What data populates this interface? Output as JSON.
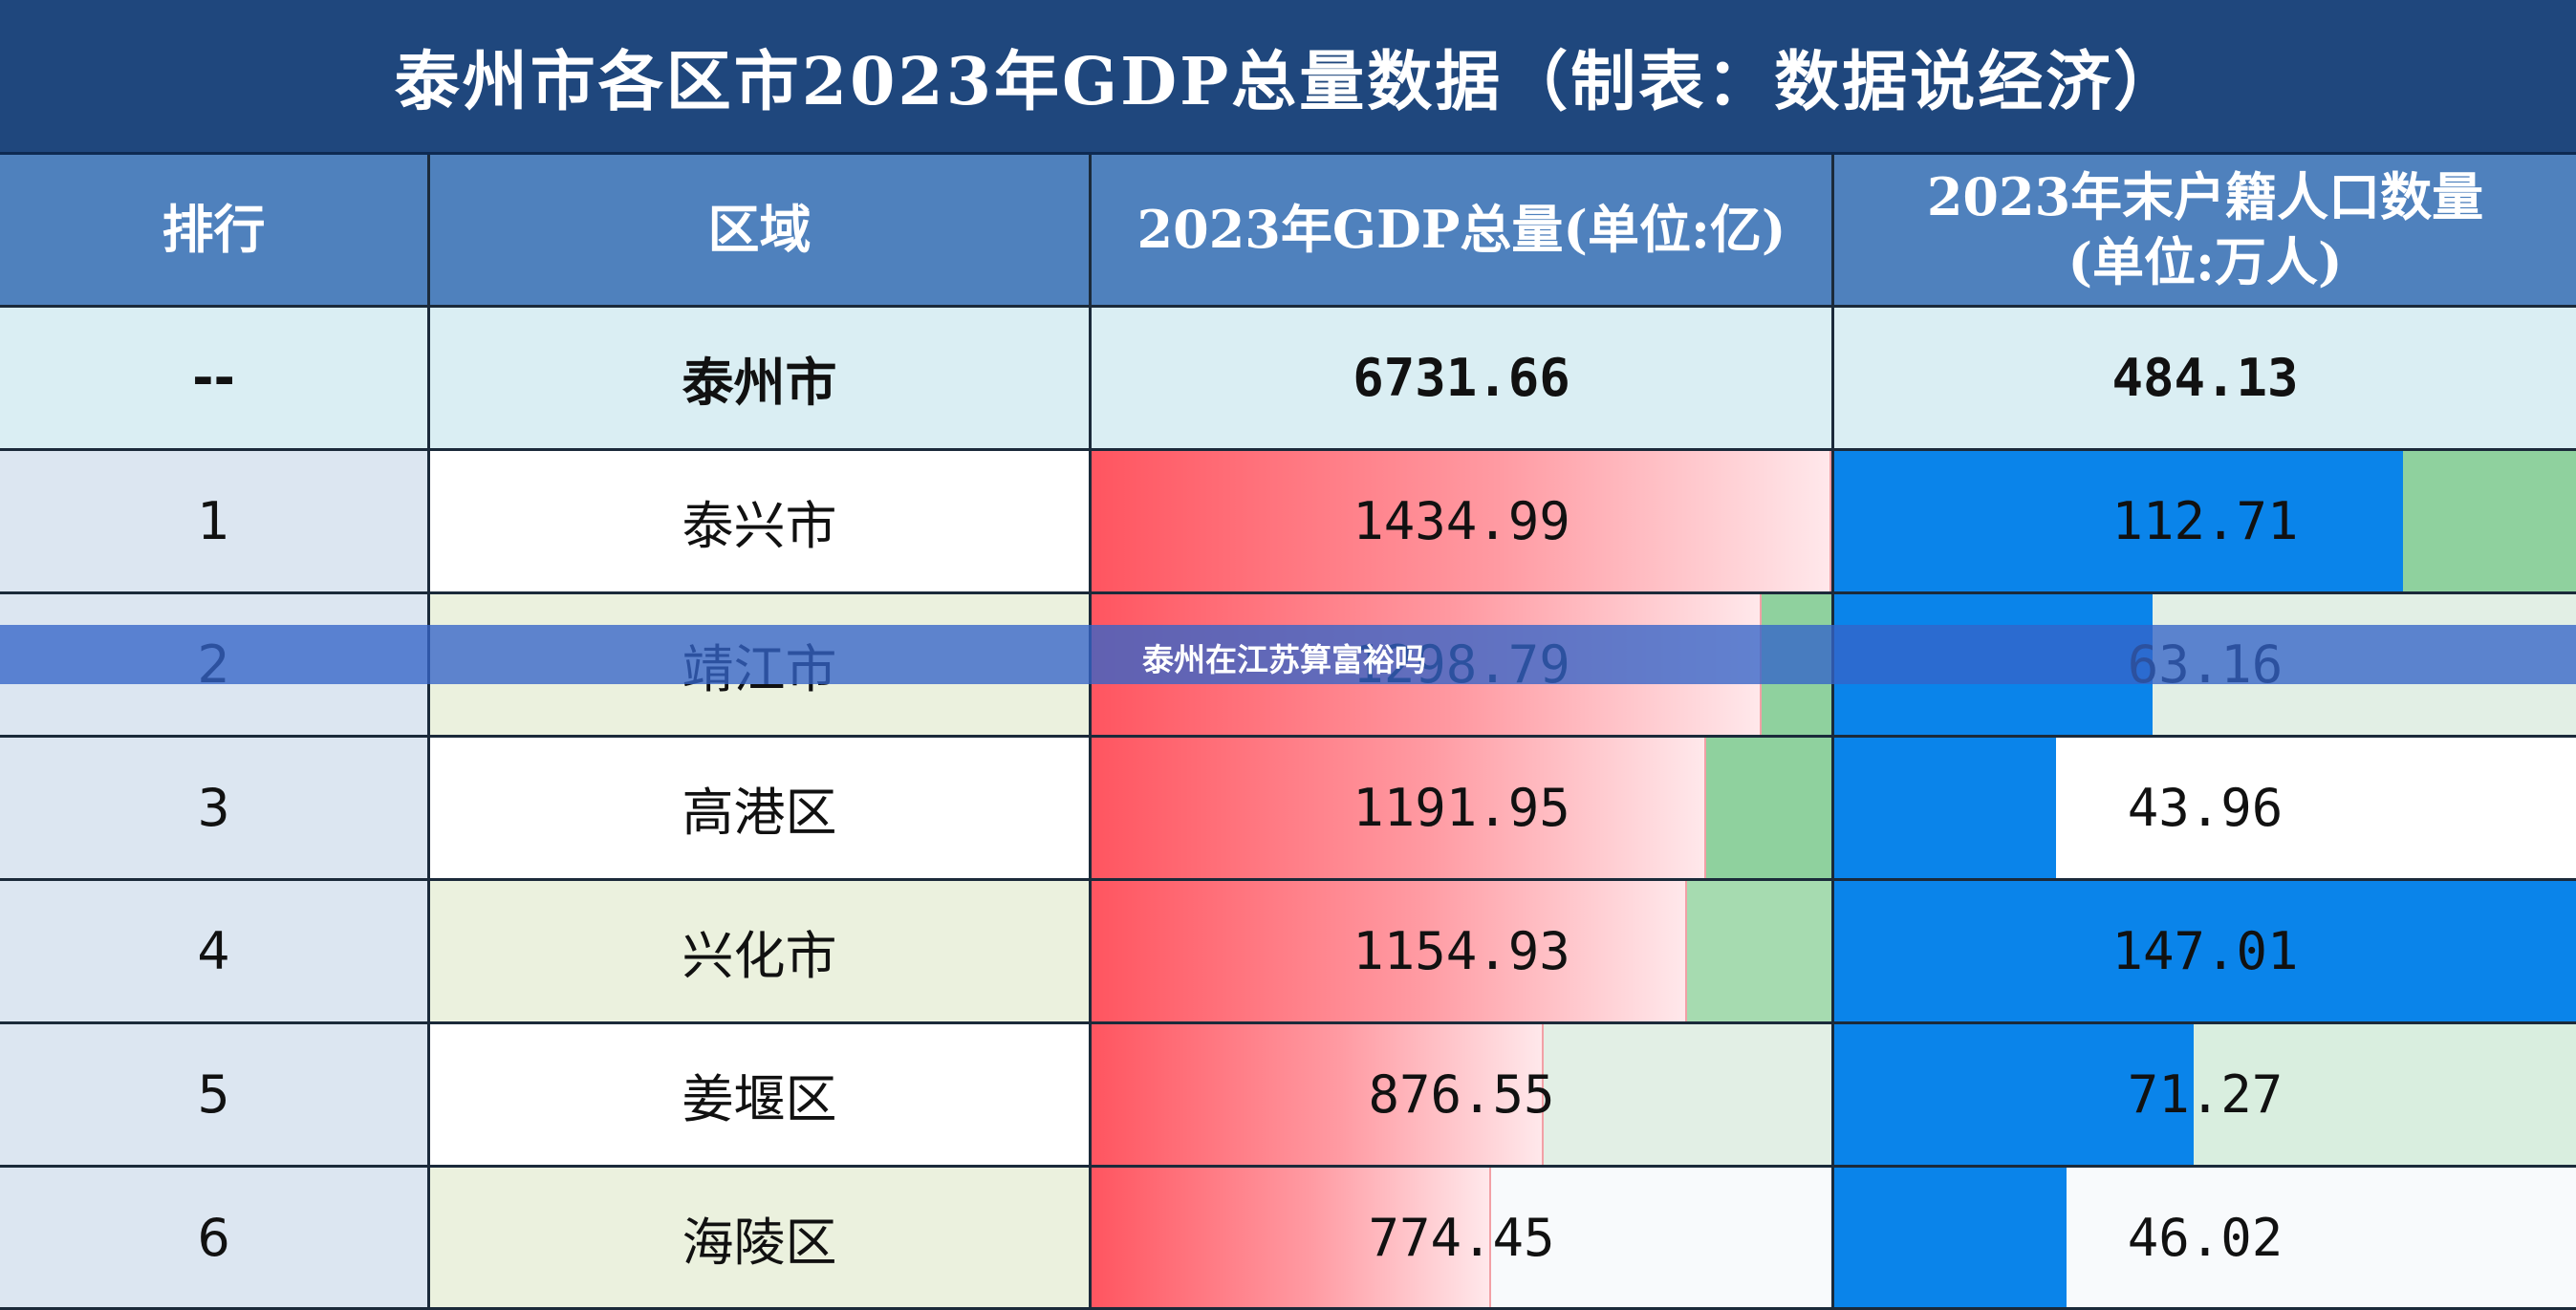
{
  "title": "泰州市各区市2023年GDP总量数据（制表：数据说经济）",
  "headers": {
    "rank": "排行",
    "region": "区域",
    "gdp": "2023年GDP总量(单位:亿)",
    "pop_line1": "2023年末户籍人口数量",
    "pop_line2": "(单位:万人)"
  },
  "colors": {
    "title_bg": "#1f477d",
    "header_bg": "#4f81bd",
    "rank_bg": "#dce6f1",
    "total_bg": "#daeef3",
    "gdp_bar": "#ff5560",
    "gdp_remainder_high": "#8fd19e",
    "pop_bar": "#0a84ea",
    "pop_remainder_high": "#8fd19e",
    "overlay": "#3464c8"
  },
  "total_row": {
    "rank": "--",
    "region": "泰州市",
    "gdp": "6731.66",
    "pop": "484.13"
  },
  "chart_data": {
    "type": "table",
    "columns": [
      "排行",
      "区域",
      "2023年GDP总量(单位:亿)",
      "2023年末户籍人口数量(单位:万人)"
    ],
    "gdp_scale_max": 1434.99,
    "pop_scale_max": 147.01,
    "rows": [
      {
        "rank": "1",
        "region": "泰兴市",
        "gdp": 1434.99,
        "gdp_text": "1434.99",
        "pop": 112.71,
        "pop_text": "112.71",
        "region_bg": "#ffffff",
        "gdp_rem": "#ffffff",
        "pop_rem": "#8fd19e"
      },
      {
        "rank": "2",
        "region": "靖江市",
        "gdp": 1298.79,
        "gdp_text": "1298.79",
        "pop": 63.16,
        "pop_text": "63.16",
        "region_bg": "#ebf1de",
        "gdp_rem": "#8fd19e",
        "pop_rem": "#e2efe5"
      },
      {
        "rank": "3",
        "region": "高港区",
        "gdp": 1191.95,
        "gdp_text": "1191.95",
        "pop": 43.96,
        "pop_text": "43.96",
        "region_bg": "#ffffff",
        "gdp_rem": "#8fd19e",
        "pop_rem": "#ffffff"
      },
      {
        "rank": "4",
        "region": "兴化市",
        "gdp": 1154.93,
        "gdp_text": "1154.93",
        "pop": 147.01,
        "pop_text": "147.01",
        "region_bg": "#ebf1de",
        "gdp_rem": "#a6dbb0",
        "pop_rem": "#0a84ea"
      },
      {
        "rank": "5",
        "region": "姜堰区",
        "gdp": 876.55,
        "gdp_text": "876.55",
        "pop": 71.27,
        "pop_text": "71.27",
        "region_bg": "#ffffff",
        "gdp_rem": "#e2efe5",
        "pop_rem": "#d9eedf"
      },
      {
        "rank": "6",
        "region": "海陵区",
        "gdp": 774.45,
        "gdp_text": "774.45",
        "pop": 46.02,
        "pop_text": "46.02",
        "region_bg": "#ebf1de",
        "gdp_rem": "#f8fafc",
        "pop_rem": "#f8fafc"
      }
    ]
  },
  "overlay": {
    "text": "泰州在江苏算富裕吗"
  }
}
